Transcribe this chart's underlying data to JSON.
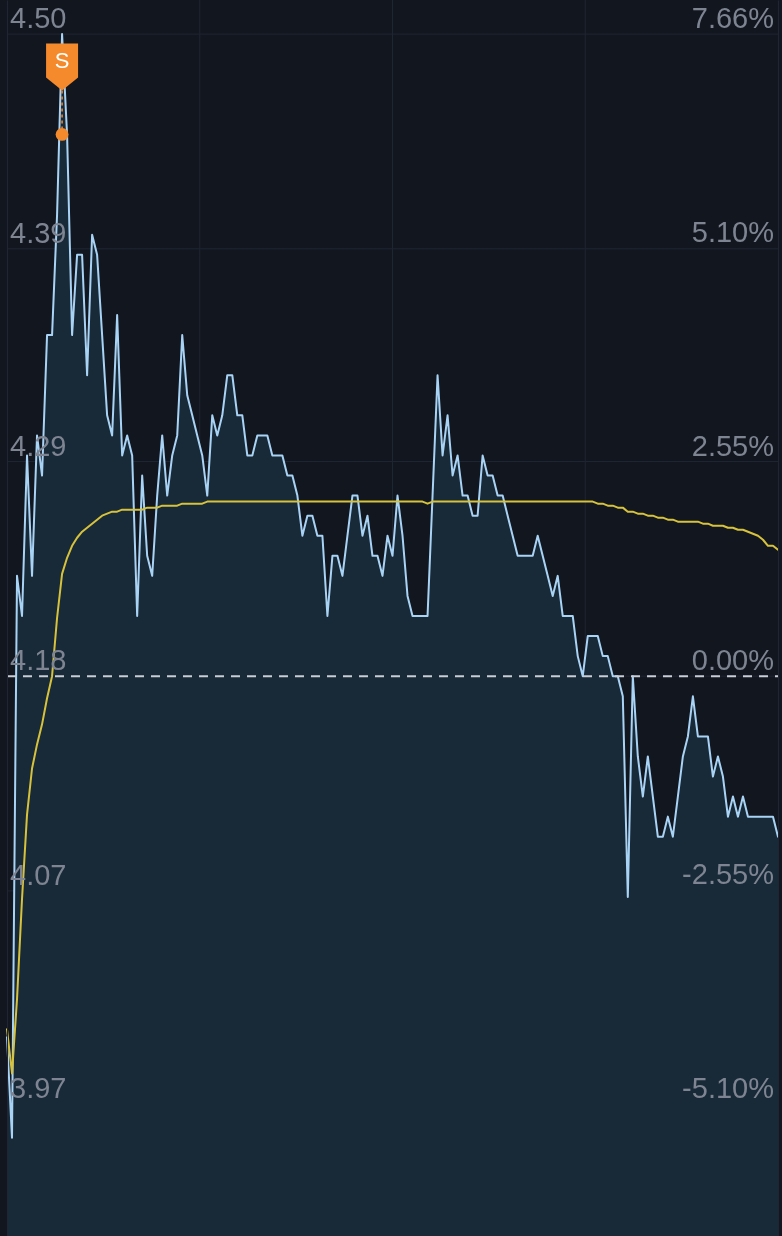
{
  "chart_data": {
    "type": "area",
    "categories": [
      null,
      null,
      null,
      null,
      null,
      null,
      null,
      null,
      null,
      null,
      null,
      null,
      null,
      null,
      null,
      null,
      null,
      null,
      null,
      null,
      null,
      null,
      null,
      null,
      null,
      null,
      null,
      null,
      null,
      null,
      null,
      null,
      null,
      null,
      null,
      null,
      null,
      null,
      null,
      null,
      null,
      null,
      null,
      null,
      null,
      null,
      null,
      null,
      null,
      null,
      null,
      null,
      null,
      null,
      null,
      null,
      null,
      null,
      null,
      null,
      null,
      null,
      null,
      null,
      null,
      null,
      null,
      null,
      null,
      null,
      null,
      null,
      null,
      null,
      null,
      null,
      null,
      null,
      null,
      null,
      null,
      null,
      null,
      null,
      null,
      null,
      null,
      null,
      null,
      null,
      null,
      null,
      null,
      null,
      null,
      null,
      null,
      null,
      null,
      null,
      null,
      null,
      null,
      null,
      null,
      null,
      null,
      null,
      null,
      null,
      null,
      null,
      null,
      null,
      null,
      null,
      null,
      null,
      null,
      null,
      null,
      null,
      null,
      null,
      null,
      null,
      null,
      null,
      null,
      null,
      null,
      null,
      null,
      null,
      null,
      null,
      null,
      null,
      null,
      null,
      null,
      null,
      null,
      null,
      null,
      null,
      null,
      null,
      null,
      null,
      null,
      null,
      null,
      null,
      null
    ],
    "series": [
      {
        "color": "#a9d3f5",
        "values": [
          4.0,
          3.95,
          4.23,
          4.21,
          4.29,
          4.23,
          4.3,
          4.28,
          4.35,
          4.35,
          4.41,
          4.5,
          4.45,
          4.35,
          4.39,
          4.39,
          4.33,
          4.4,
          4.39,
          4.35,
          4.31,
          4.3,
          4.36,
          4.29,
          4.3,
          4.29,
          4.21,
          4.28,
          4.24,
          4.23,
          4.27,
          4.3,
          4.27,
          4.29,
          4.3,
          4.35,
          4.32,
          4.31,
          4.3,
          4.29,
          4.27,
          4.31,
          4.3,
          4.31,
          4.33,
          4.33,
          4.31,
          4.31,
          4.29,
          4.29,
          4.3,
          4.3,
          4.3,
          4.29,
          4.29,
          4.29,
          4.28,
          4.28,
          4.27,
          4.25,
          4.26,
          4.26,
          4.25,
          4.25,
          4.21,
          4.24,
          4.24,
          4.23,
          4.25,
          4.27,
          4.27,
          4.25,
          4.26,
          4.24,
          4.24,
          4.23,
          4.25,
          4.24,
          4.27,
          4.25,
          4.22,
          4.21,
          4.21,
          4.21,
          4.21,
          4.27,
          4.33,
          4.29,
          4.31,
          4.28,
          4.29,
          4.27,
          4.27,
          4.26,
          4.26,
          4.29,
          4.28,
          4.28,
          4.27,
          4.27,
          4.26,
          4.25,
          4.24,
          4.24,
          4.24,
          4.24,
          4.25,
          4.24,
          4.23,
          4.22,
          4.23,
          4.21,
          4.21,
          4.21,
          4.19,
          4.18,
          4.2,
          4.2,
          4.2,
          4.19,
          4.19,
          4.18,
          4.18,
          4.17,
          4.07,
          4.18,
          4.14,
          4.12,
          4.14,
          4.12,
          4.1,
          4.1,
          4.11,
          4.1,
          4.12,
          4.14,
          4.15,
          4.17,
          4.15,
          4.15,
          4.15,
          4.13,
          4.14,
          4.13,
          4.11,
          4.12,
          4.11,
          4.12,
          4.11,
          4.11,
          4.11,
          4.11,
          4.11,
          4.11,
          4.1
        ]
      },
      {
        "type": "line",
        "color": "#d6c23c",
        "values": [
          4.004,
          3.982,
          4.019,
          4.069,
          4.111,
          4.134,
          4.146,
          4.156,
          4.169,
          4.18,
          4.209,
          4.231,
          4.239,
          4.245,
          4.249,
          4.252,
          4.254,
          4.256,
          4.258,
          4.26,
          4.261,
          4.262,
          4.262,
          4.263,
          4.263,
          4.263,
          4.263,
          4.263,
          4.264,
          4.264,
          4.264,
          4.265,
          4.265,
          4.265,
          4.265,
          4.266,
          4.266,
          4.266,
          4.266,
          4.266,
          4.267,
          4.267,
          4.267,
          4.267,
          4.267,
          4.267,
          4.267,
          4.267,
          4.267,
          4.267,
          4.267,
          4.267,
          4.267,
          4.267,
          4.267,
          4.267,
          4.267,
          4.267,
          4.267,
          4.267,
          4.267,
          4.267,
          4.267,
          4.267,
          4.267,
          4.267,
          4.267,
          4.267,
          4.267,
          4.267,
          4.267,
          4.267,
          4.267,
          4.267,
          4.267,
          4.267,
          4.267,
          4.267,
          4.267,
          4.267,
          4.267,
          4.267,
          4.267,
          4.267,
          4.266,
          4.267,
          4.267,
          4.267,
          4.267,
          4.267,
          4.267,
          4.267,
          4.267,
          4.267,
          4.267,
          4.267,
          4.267,
          4.267,
          4.267,
          4.267,
          4.267,
          4.267,
          4.267,
          4.267,
          4.267,
          4.267,
          4.267,
          4.267,
          4.267,
          4.267,
          4.267,
          4.267,
          4.267,
          4.267,
          4.267,
          4.267,
          4.267,
          4.267,
          4.266,
          4.266,
          4.265,
          4.265,
          4.264,
          4.264,
          4.262,
          4.262,
          4.261,
          4.261,
          4.26,
          4.26,
          4.259,
          4.259,
          4.258,
          4.258,
          4.257,
          4.257,
          4.257,
          4.257,
          4.257,
          4.256,
          4.256,
          4.255,
          4.255,
          4.255,
          4.254,
          4.254,
          4.253,
          4.253,
          4.252,
          4.251,
          4.25,
          4.248,
          4.245,
          4.245,
          4.243
        ]
      },
      {
        "type": "scatter",
        "name": "S",
        "color": "#f58a2c",
        "marker": "circle",
        "values": [
          null,
          null,
          null,
          null,
          null,
          null,
          null,
          null,
          null,
          null,
          null,
          4.45,
          null,
          null,
          null,
          null,
          null,
          null,
          null,
          null,
          null,
          null,
          null,
          null,
          null,
          null,
          null,
          null,
          null,
          null,
          null,
          null,
          null,
          null,
          null,
          null,
          null,
          null,
          null,
          null,
          null,
          null,
          null,
          null,
          null,
          null,
          null,
          null,
          null,
          null,
          null,
          null,
          null,
          null,
          null,
          null,
          null,
          null,
          null,
          null,
          null,
          null,
          null,
          null,
          null,
          null,
          null,
          null,
          null,
          null,
          null,
          null,
          null,
          null,
          null,
          null,
          null,
          null,
          null,
          null,
          null,
          null,
          null,
          null,
          null,
          null,
          null,
          null,
          null,
          null,
          null,
          null,
          null,
          null,
          null,
          null,
          null,
          null,
          null,
          null,
          null,
          null,
          null,
          null,
          null,
          null,
          null,
          null,
          null,
          null,
          null,
          null,
          null,
          null,
          null,
          null,
          null,
          null,
          null,
          null,
          null,
          null,
          null,
          null,
          null,
          null,
          null,
          null,
          null,
          null,
          null,
          null,
          null,
          null,
          null,
          null,
          null,
          null,
          null,
          null,
          null,
          null,
          null,
          null,
          null,
          null,
          null,
          null,
          null,
          null,
          null,
          null,
          null,
          null,
          null
        ]
      }
    ],
    "ylim": [
      3.901,
      4.517
    ],
    "yticks": [
      {
        "value": 4.5,
        "label": "4.50"
      },
      {
        "value": 4.393,
        "label": "4.39"
      },
      {
        "value": 4.287,
        "label": "4.29"
      },
      {
        "value": 4.18,
        "label": "4.18"
      },
      {
        "value": 4.073,
        "label": "4.07"
      },
      {
        "value": 3.967,
        "label": "3.97"
      }
    ],
    "y2lim": [
      -6.67,
      8.06
    ],
    "y2ticks": [
      {
        "value": 7.66,
        "label": "7.66%"
      },
      {
        "value": 5.1,
        "label": "5.10%"
      },
      {
        "value": 2.55,
        "label": "2.55%"
      },
      {
        "value": 0,
        "label": "0.00%"
      },
      {
        "value": -2.55,
        "label": "-2.55%"
      },
      {
        "value": -5.1,
        "label": "-5.10%"
      }
    ],
    "ref_lines": [
      {
        "axis": "y",
        "value": 4.18,
        "color": "#c9cdd6",
        "line_style": "dashed"
      }
    ],
    "grid": true
  }
}
